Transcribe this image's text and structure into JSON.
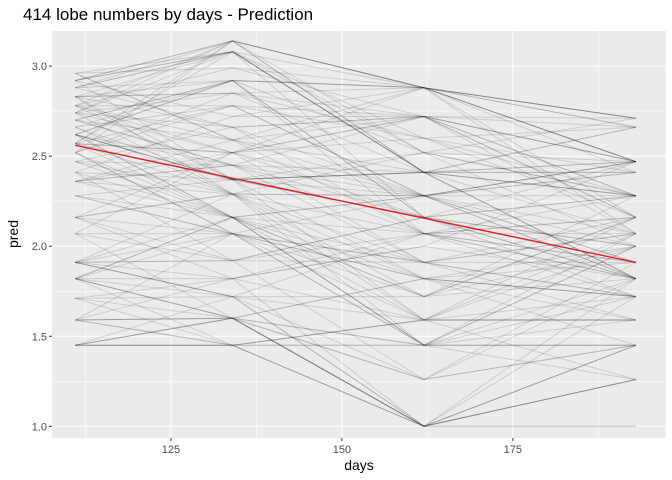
{
  "chart_data": {
    "type": "line",
    "title": "414 lobe numbers by days - Prediction",
    "xlabel": "days",
    "ylabel": "pred",
    "xlim": [
      107.6,
      197.4
    ],
    "ylim": [
      0.935,
      3.195
    ],
    "x_ticks": [
      125,
      150,
      175
    ],
    "x_tick_labels": [
      "125",
      "150",
      "175"
    ],
    "y_ticks": [
      1.0,
      1.5,
      2.0,
      2.5,
      3.0
    ],
    "y_tick_labels": [
      "1.0",
      "1.5",
      "2.0",
      "2.5",
      "3.0"
    ],
    "x": [
      111,
      134,
      162,
      193
    ],
    "series_count": 130,
    "series_color": "#000000",
    "series_opacity": 0.13,
    "anchor_values_by_x": [
      [
        1.45,
        1.59,
        1.71,
        1.82,
        1.91,
        2.07,
        2.16,
        2.28,
        2.36,
        2.41,
        2.47,
        2.52,
        2.57,
        2.62,
        2.66,
        2.7,
        2.74,
        2.78,
        2.83,
        2.88,
        2.92,
        2.96
      ],
      [
        1.45,
        1.6,
        1.72,
        1.82,
        1.92,
        2.07,
        2.16,
        2.29,
        2.37,
        2.45,
        2.52,
        2.59,
        2.66,
        2.72,
        2.78,
        2.85,
        2.92,
        2.99,
        3.08,
        3.14
      ],
      [
        1.0,
        1.26,
        1.45,
        1.59,
        1.72,
        1.82,
        1.91,
        2.0,
        2.07,
        2.16,
        2.28,
        2.41,
        2.52,
        2.6,
        2.72,
        2.88
      ],
      [
        1.0,
        1.26,
        1.45,
        1.59,
        1.72,
        1.82,
        1.91,
        2.0,
        2.07,
        2.16,
        2.28,
        2.41,
        2.47,
        2.66,
        2.71
      ]
    ],
    "trend": {
      "x": [
        111,
        193
      ],
      "y": [
        2.56,
        1.91
      ],
      "color": "#e41a1c"
    },
    "background_color": "#ebebeb",
    "grid": true
  }
}
